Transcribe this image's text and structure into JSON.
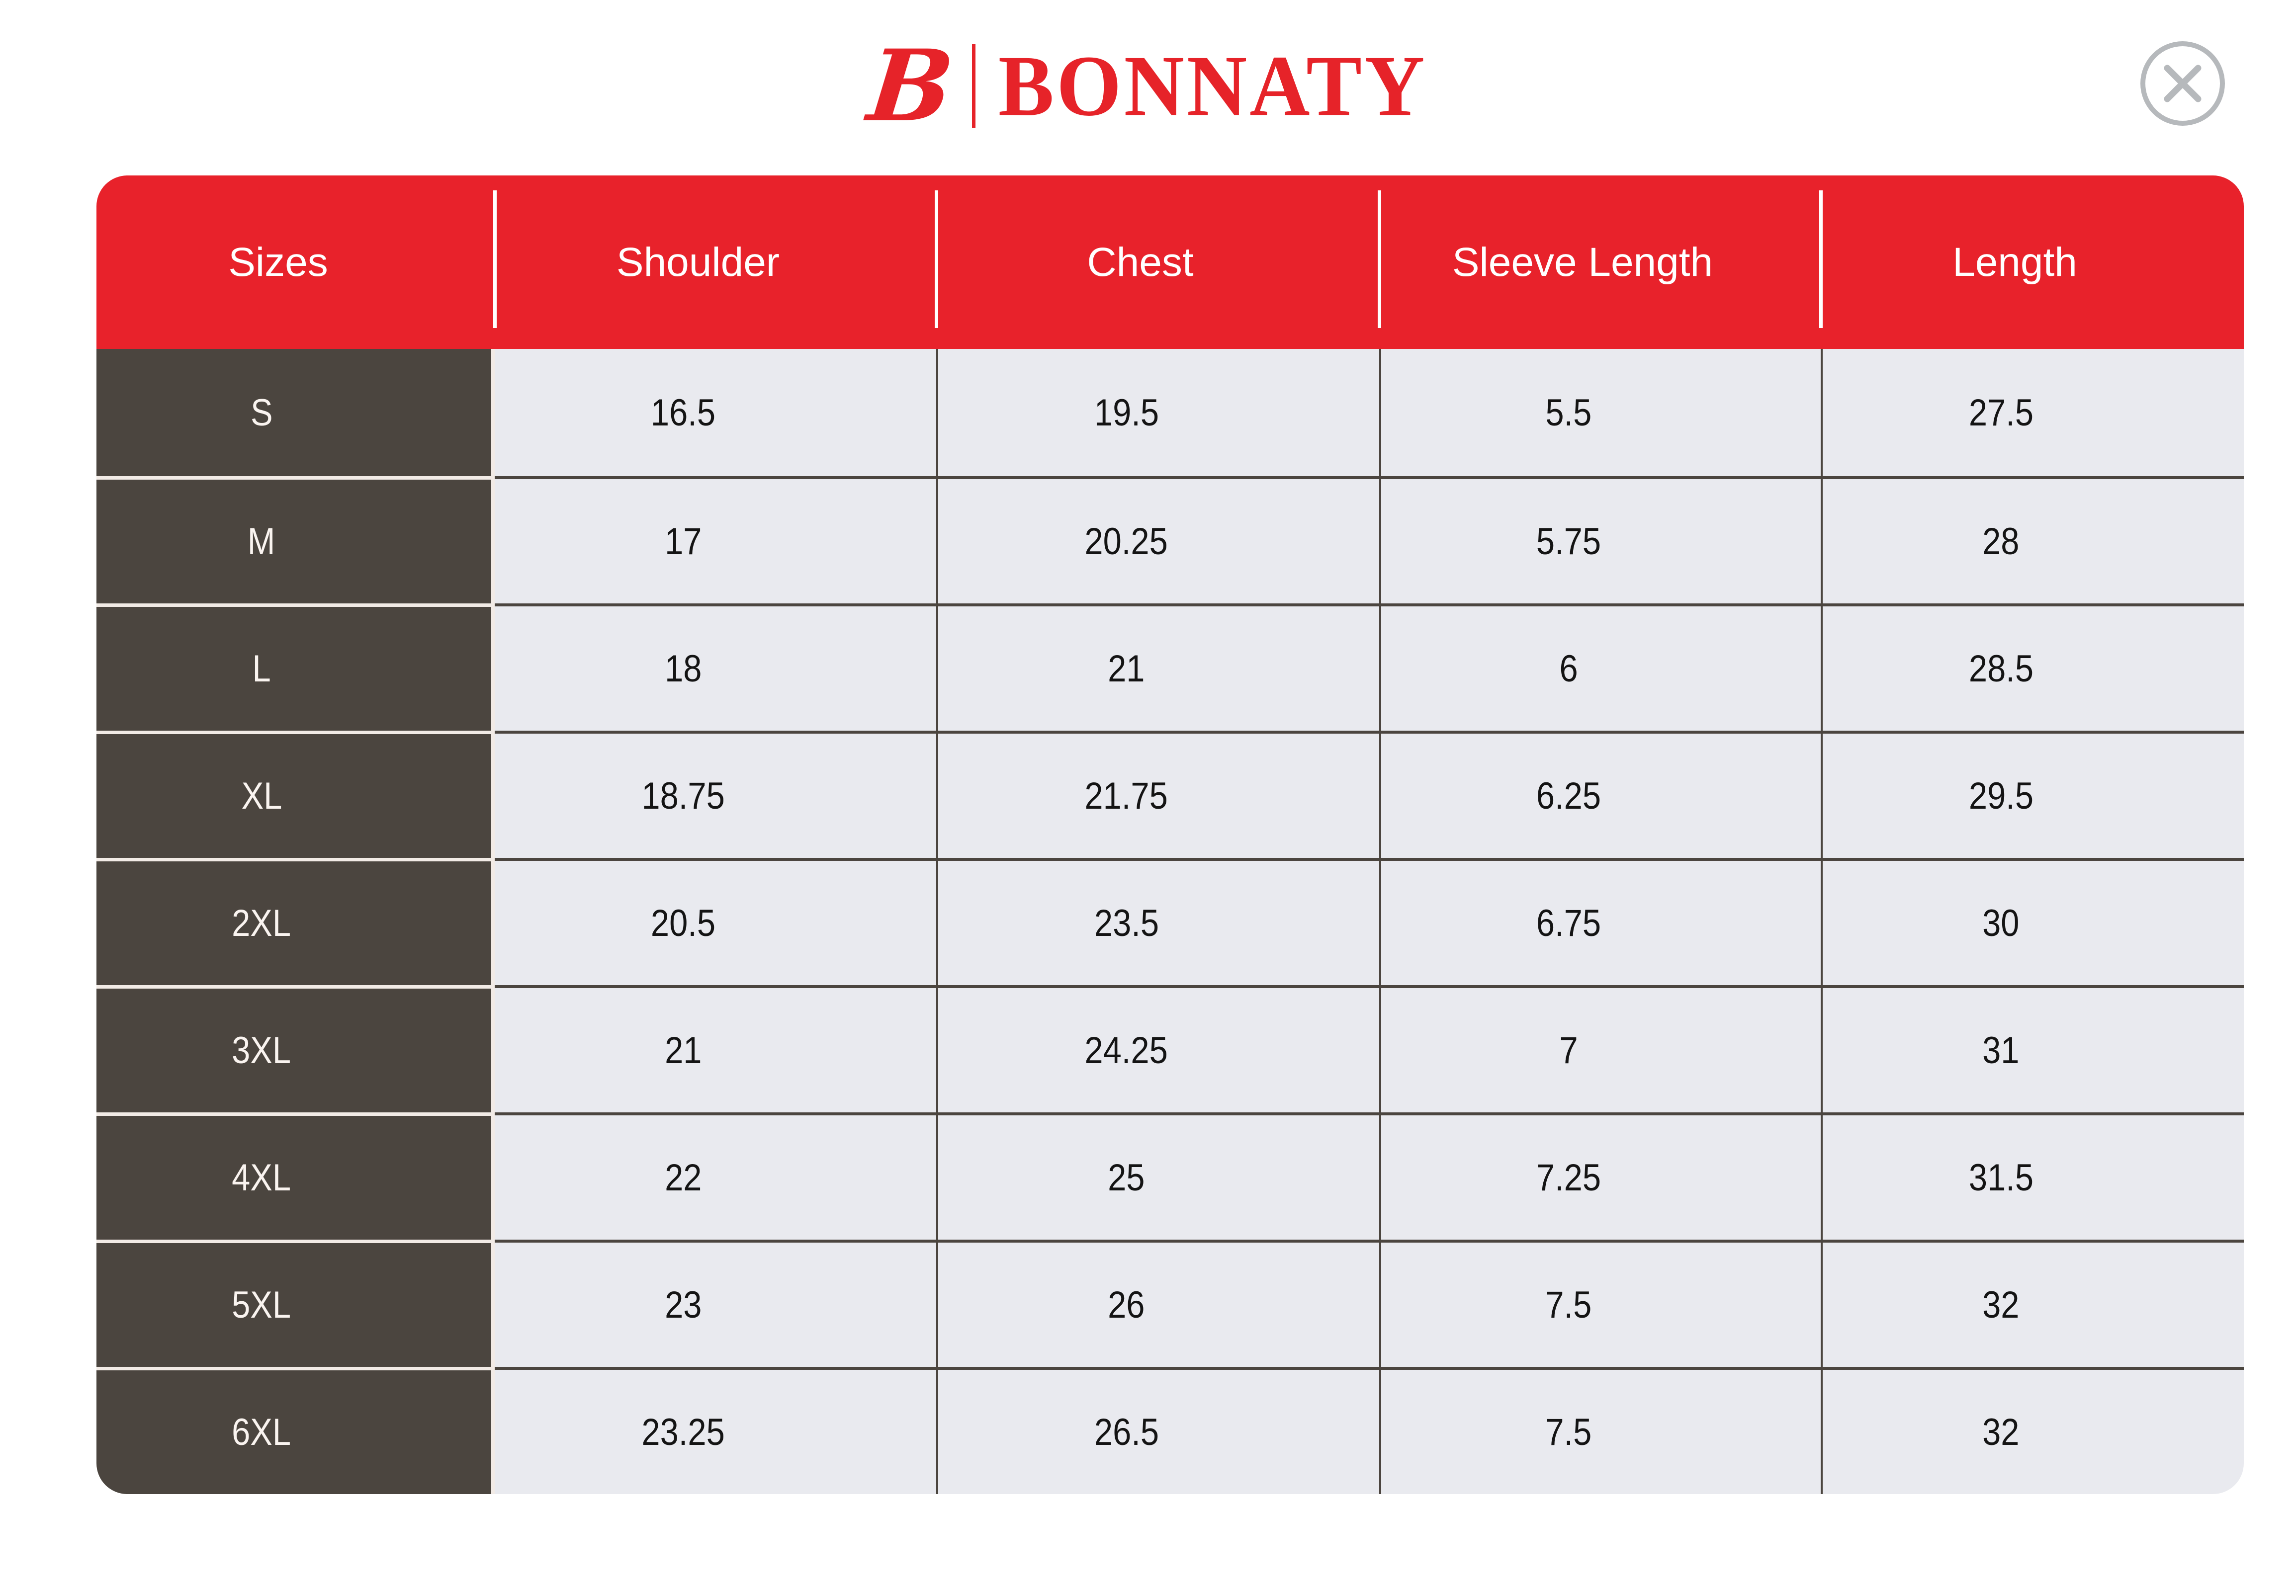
{
  "brand": {
    "monogram": "B",
    "name": "BONNATY"
  },
  "close_button": {
    "icon": "close-icon"
  },
  "table": {
    "columns": [
      "Sizes",
      "Shoulder",
      "Chest",
      "Sleeve Length",
      "Length"
    ],
    "rows": [
      {
        "size": "S",
        "values": [
          "16.5",
          "19.5",
          "5.5",
          "27.5"
        ]
      },
      {
        "size": "M",
        "values": [
          "17",
          "20.25",
          "5.75",
          "28"
        ]
      },
      {
        "size": "L",
        "values": [
          "18",
          "21",
          "6",
          "28.5"
        ]
      },
      {
        "size": "XL",
        "values": [
          "18.75",
          "21.75",
          "6.25",
          "29.5"
        ]
      },
      {
        "size": "2XL",
        "values": [
          "20.5",
          "23.5",
          "6.75",
          "30"
        ]
      },
      {
        "size": "3XL",
        "values": [
          "21",
          "24.25",
          "7",
          "31"
        ]
      },
      {
        "size": "4XL",
        "values": [
          "22",
          "25",
          "7.25",
          "31.5"
        ]
      },
      {
        "size": "5XL",
        "values": [
          "23",
          "26",
          "7.5",
          "32"
        ]
      },
      {
        "size": "6XL",
        "values": [
          "23.25",
          "26.5",
          "7.5",
          "32"
        ]
      }
    ]
  },
  "colors": {
    "accent_red": "#e8222b",
    "logo_red": "#e62329",
    "dark_cell": "#4b453f",
    "light_cell": "#e9eaef",
    "separator_cream": "#f2ebe6",
    "close_gray": "#b6b9bc"
  }
}
